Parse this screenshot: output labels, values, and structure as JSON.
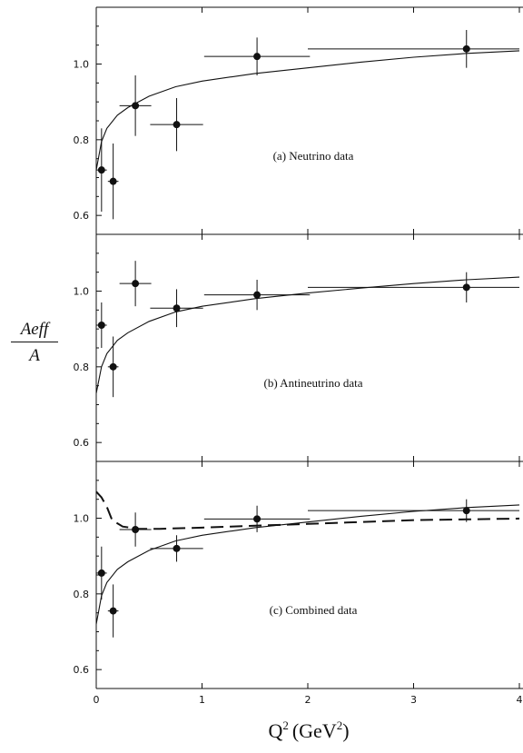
{
  "chart_data": [
    {
      "type": "scatter",
      "panel_label": "(a) Neutrino data",
      "xlim": [
        0,
        4
      ],
      "ylim": [
        0.55,
        1.15
      ],
      "x_ticks": [
        "0",
        "1",
        "2",
        "3",
        "4"
      ],
      "y_ticks": [
        "0.6",
        "0.8",
        "1.0"
      ],
      "grid": false,
      "points": [
        {
          "x": 0.05,
          "y": 0.72,
          "xerr": 0.05,
          "yerr": 0.11
        },
        {
          "x": 0.16,
          "y": 0.69,
          "xerr": 0.05,
          "yerr": 0.1
        },
        {
          "x": 0.37,
          "y": 0.89,
          "xerr": 0.15,
          "yerr": 0.08
        },
        {
          "x": 0.76,
          "y": 0.84,
          "xerr": 0.25,
          "yerr": 0.07
        },
        {
          "x": 1.52,
          "y": 1.02,
          "xerr": 0.5,
          "yerr": 0.05
        },
        {
          "x": 3.5,
          "y": 1.04,
          "xerr": 1.5,
          "yerr": 0.05
        }
      ],
      "curve": {
        "style": "solid",
        "x": [
          0,
          0.05,
          0.1,
          0.2,
          0.3,
          0.5,
          0.75,
          1.0,
          1.5,
          2.0,
          2.5,
          3.0,
          3.5,
          4.0
        ],
        "y": [
          0.72,
          0.795,
          0.83,
          0.865,
          0.885,
          0.915,
          0.94,
          0.955,
          0.975,
          0.99,
          1.005,
          1.018,
          1.028,
          1.035
        ]
      }
    },
    {
      "type": "scatter",
      "panel_label": "(b) Antineutrino data",
      "xlim": [
        0,
        4
      ],
      "ylim": [
        0.55,
        1.15
      ],
      "x_ticks": [
        "0",
        "1",
        "2",
        "3",
        "4"
      ],
      "y_ticks": [
        "0.6",
        "0.8",
        "1.0"
      ],
      "grid": false,
      "points": [
        {
          "x": 0.05,
          "y": 0.91,
          "xerr": 0.05,
          "yerr": 0.06
        },
        {
          "x": 0.16,
          "y": 0.8,
          "xerr": 0.05,
          "yerr": 0.08
        },
        {
          "x": 0.37,
          "y": 1.02,
          "xerr": 0.15,
          "yerr": 0.06
        },
        {
          "x": 0.76,
          "y": 0.955,
          "xerr": 0.25,
          "yerr": 0.05
        },
        {
          "x": 1.52,
          "y": 0.99,
          "xerr": 0.5,
          "yerr": 0.04
        },
        {
          "x": 3.5,
          "y": 1.01,
          "xerr": 1.5,
          "yerr": 0.04
        }
      ],
      "curve": {
        "style": "solid",
        "x": [
          0,
          0.05,
          0.1,
          0.2,
          0.3,
          0.5,
          0.75,
          1.0,
          1.5,
          2.0,
          2.5,
          3.0,
          3.5,
          4.0
        ],
        "y": [
          0.73,
          0.8,
          0.835,
          0.87,
          0.89,
          0.92,
          0.945,
          0.96,
          0.98,
          0.995,
          1.008,
          1.02,
          1.03,
          1.037
        ]
      }
    },
    {
      "type": "scatter",
      "panel_label": "(c) Combined data",
      "xlim": [
        0,
        4
      ],
      "ylim": [
        0.55,
        1.15
      ],
      "x_ticks": [
        "0",
        "1",
        "2",
        "3",
        "4"
      ],
      "y_ticks": [
        "0.6",
        "0.8",
        "1.0"
      ],
      "grid": false,
      "points": [
        {
          "x": 0.05,
          "y": 0.855,
          "xerr": 0.05,
          "yerr": 0.07
        },
        {
          "x": 0.16,
          "y": 0.755,
          "xerr": 0.05,
          "yerr": 0.07
        },
        {
          "x": 0.37,
          "y": 0.97,
          "xerr": 0.15,
          "yerr": 0.045
        },
        {
          "x": 0.76,
          "y": 0.92,
          "xerr": 0.25,
          "yerr": 0.035
        },
        {
          "x": 1.52,
          "y": 0.998,
          "xerr": 0.5,
          "yerr": 0.035
        },
        {
          "x": 3.5,
          "y": 1.02,
          "xerr": 1.5,
          "yerr": 0.03
        }
      ],
      "curve": {
        "style": "solid",
        "x": [
          0,
          0.05,
          0.1,
          0.2,
          0.3,
          0.5,
          0.75,
          1.0,
          1.5,
          2.0,
          2.5,
          3.0,
          3.5,
          4.0
        ],
        "y": [
          0.72,
          0.795,
          0.83,
          0.865,
          0.885,
          0.915,
          0.94,
          0.955,
          0.975,
          0.99,
          1.005,
          1.018,
          1.028,
          1.035
        ]
      },
      "curve2": {
        "style": "dashed",
        "x": [
          0,
          0.05,
          0.1,
          0.15,
          0.25,
          0.4,
          0.6,
          1.0,
          1.5,
          2.0,
          2.5,
          3.0,
          3.5,
          4.0
        ],
        "y": [
          1.07,
          1.055,
          1.03,
          0.995,
          0.978,
          0.972,
          0.972,
          0.975,
          0.98,
          0.985,
          0.99,
          0.995,
          0.997,
          0.999
        ]
      }
    }
  ],
  "xlabel_text": "Q",
  "xlabel_sup": "2",
  "xlabel_unit": "(GeV",
  "xlabel_unit_sup": "2",
  "xlabel_close": ")",
  "ylabel_num": "Aeff",
  "ylabel_den": "A"
}
